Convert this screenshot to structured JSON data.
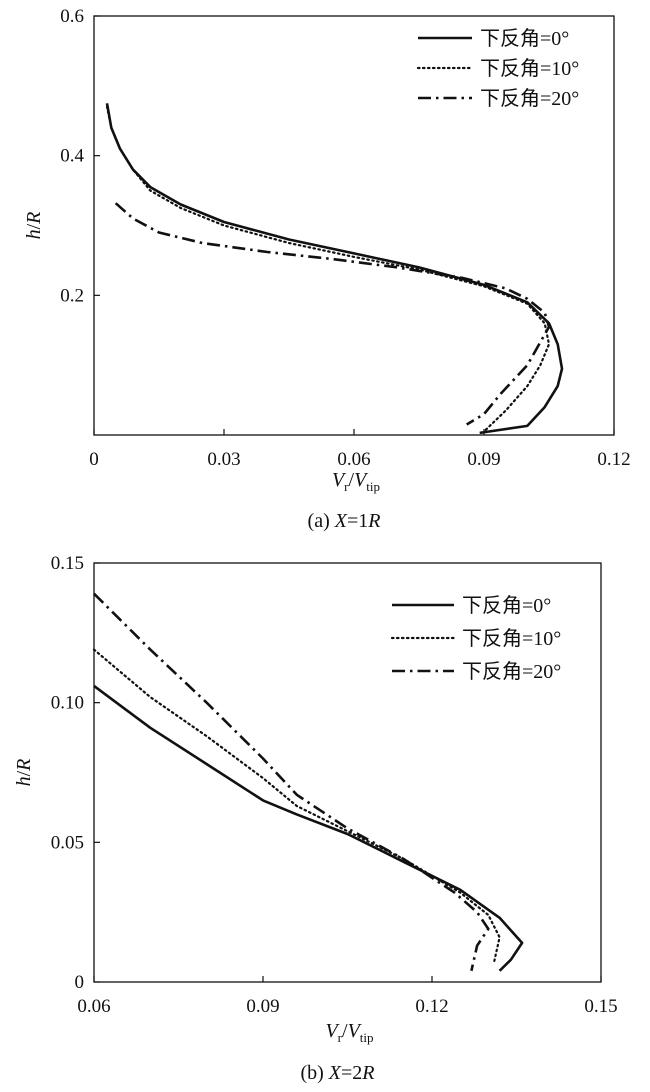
{
  "chart_data": [
    {
      "type": "line",
      "caption": {
        "prefix": "(a) ",
        "var": "X",
        "rel": "=1",
        "unit": "R"
      },
      "xlabel": {
        "main": "V",
        "sub1": "r",
        "sep": "/",
        "main2": "V",
        "sub2": "tip"
      },
      "ylabel": {
        "main": "h",
        "rest": "/R"
      },
      "xlim": [
        0,
        0.12
      ],
      "ylim": [
        0,
        0.6
      ],
      "xticks": [
        0,
        0.03,
        0.06,
        0.09,
        0.12
      ],
      "xtick_labels": [
        "0",
        "0.03",
        "0.06",
        "0.09",
        "0.12"
      ],
      "yticks": [
        0.2,
        0.4,
        0.6
      ],
      "ytick_labels": [
        "0.2",
        "0.4",
        "0.6"
      ],
      "legend_position": "top-right",
      "series": [
        {
          "name": "下反角=0°",
          "style": "solid",
          "x": [
            0.003,
            0.004,
            0.006,
            0.009,
            0.013,
            0.02,
            0.03,
            0.045,
            0.06,
            0.075,
            0.09,
            0.1,
            0.105,
            0.107,
            0.108,
            0.107,
            0.104,
            0.1,
            0.089
          ],
          "y": [
            0.475,
            0.44,
            0.41,
            0.38,
            0.355,
            0.33,
            0.305,
            0.28,
            0.26,
            0.24,
            0.215,
            0.19,
            0.16,
            0.13,
            0.095,
            0.07,
            0.04,
            0.013,
            0.003
          ]
        },
        {
          "name": "下反角=10°",
          "style": "dotted",
          "x": [
            0.003,
            0.004,
            0.006,
            0.009,
            0.013,
            0.02,
            0.03,
            0.045,
            0.06,
            0.075,
            0.09,
            0.1,
            0.104,
            0.105,
            0.103,
            0.1,
            0.095,
            0.09
          ],
          "y": [
            0.47,
            0.44,
            0.41,
            0.38,
            0.35,
            0.325,
            0.3,
            0.275,
            0.255,
            0.237,
            0.213,
            0.188,
            0.16,
            0.13,
            0.1,
            0.07,
            0.035,
            0.005
          ]
        },
        {
          "name": "下反角=20°",
          "style": "dashdot",
          "x": [
            0.005,
            0.009,
            0.015,
            0.025,
            0.04,
            0.055,
            0.07,
            0.085,
            0.095,
            0.1,
            0.104,
            0.105,
            0.1,
            0.094,
            0.09,
            0.086
          ],
          "y": [
            0.332,
            0.31,
            0.29,
            0.275,
            0.262,
            0.252,
            0.24,
            0.225,
            0.21,
            0.195,
            0.175,
            0.155,
            0.1,
            0.06,
            0.03,
            0.015
          ]
        }
      ]
    },
    {
      "type": "line",
      "caption": {
        "prefix": "(b) ",
        "var": "X",
        "rel": "=2",
        "unit": "R"
      },
      "xlabel": {
        "main": "V",
        "sub1": "r",
        "sep": "/",
        "main2": "V",
        "sub2": "tip"
      },
      "ylabel": {
        "main": "h",
        "rest": "/R"
      },
      "xlim": [
        0.06,
        0.15
      ],
      "ylim": [
        0,
        0.15
      ],
      "xticks": [
        0.06,
        0.09,
        0.12,
        0.15
      ],
      "xtick_labels": [
        "0.06",
        "0.09",
        "0.12",
        "0.15"
      ],
      "yticks": [
        0,
        0.05,
        0.1,
        0.15
      ],
      "ytick_labels": [
        "0",
        "0.05",
        "0.10",
        "0.15"
      ],
      "legend_position": "top-right",
      "series": [
        {
          "name": "下反角=0°",
          "style": "solid",
          "x": [
            0.06,
            0.07,
            0.08,
            0.09,
            0.096,
            0.105,
            0.115,
            0.125,
            0.132,
            0.136,
            0.134,
            0.132
          ],
          "y": [
            0.106,
            0.091,
            0.078,
            0.065,
            0.06,
            0.053,
            0.043,
            0.033,
            0.023,
            0.014,
            0.008,
            0.004
          ]
        },
        {
          "name": "下反角=10°",
          "style": "dotted",
          "x": [
            0.06,
            0.07,
            0.08,
            0.09,
            0.096,
            0.105,
            0.115,
            0.125,
            0.13,
            0.132,
            0.131
          ],
          "y": [
            0.119,
            0.102,
            0.088,
            0.073,
            0.063,
            0.054,
            0.044,
            0.032,
            0.024,
            0.016,
            0.007
          ]
        },
        {
          "name": "下反角=20°",
          "style": "dashdot",
          "x": [
            0.06,
            0.07,
            0.08,
            0.09,
            0.096,
            0.105,
            0.115,
            0.124,
            0.128,
            0.13,
            0.128,
            0.127
          ],
          "y": [
            0.139,
            0.119,
            0.1,
            0.08,
            0.067,
            0.055,
            0.044,
            0.032,
            0.025,
            0.019,
            0.013,
            0.004
          ]
        }
      ]
    }
  ]
}
